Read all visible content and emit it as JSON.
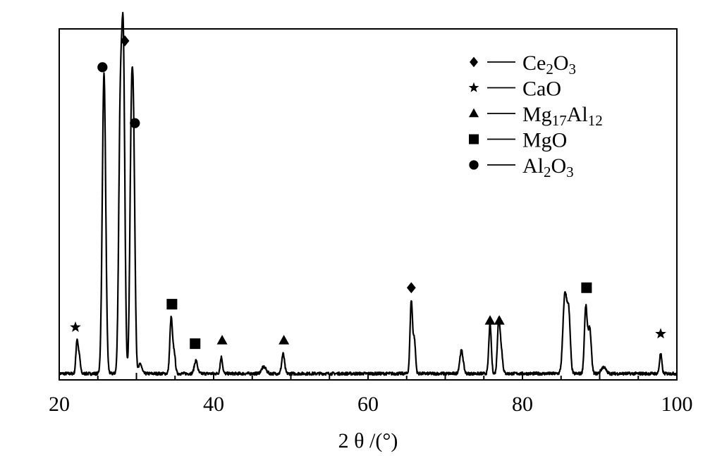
{
  "chart_data": {
    "type": "line",
    "title": "",
    "xlabel": "2 θ /(°)",
    "ylabel": "",
    "xlim": [
      20,
      100
    ],
    "ylim": [
      0,
      100
    ],
    "xticks": [
      "20",
      "40",
      "60",
      "80",
      "100"
    ],
    "grid": false,
    "legend_position": "top-right",
    "legend": [
      {
        "marker": "diamond",
        "base": "Ce",
        "sub1": "2",
        "mid": "O",
        "sub2": "3"
      },
      {
        "marker": "star",
        "base": "CaO",
        "sub1": "",
        "mid": "",
        "sub2": ""
      },
      {
        "marker": "triangle",
        "base": "Mg",
        "sub1": "17",
        "mid": "Al",
        "sub2": "12"
      },
      {
        "marker": "square",
        "base": "MgO",
        "sub1": "",
        "mid": "",
        "sub2": ""
      },
      {
        "marker": "circle",
        "base": "Al",
        "sub1": "2",
        "mid": "O",
        "sub2": "3"
      }
    ],
    "peaks": [
      {
        "x": 22.3,
        "y": 10,
        "w": 0.14
      },
      {
        "x": 22.6,
        "y": 5,
        "w": 0.14
      },
      {
        "x": 25.8,
        "y": 91,
        "w": 0.22
      },
      {
        "x": 28.3,
        "y": 96,
        "w": 0.2
      },
      {
        "x": 27.9,
        "y": 75,
        "w": 0.2
      },
      {
        "x": 29.6,
        "y": 72,
        "w": 0.2
      },
      {
        "x": 29.3,
        "y": 55,
        "w": 0.18
      },
      {
        "x": 30.5,
        "y": 3,
        "w": 0.2
      },
      {
        "x": 34.5,
        "y": 17,
        "w": 0.17
      },
      {
        "x": 34.9,
        "y": 6,
        "w": 0.15
      },
      {
        "x": 37.7,
        "y": 4,
        "w": 0.2
      },
      {
        "x": 41.0,
        "y": 5,
        "w": 0.15
      },
      {
        "x": 46.5,
        "y": 2,
        "w": 0.3
      },
      {
        "x": 49.0,
        "y": 6,
        "w": 0.18
      },
      {
        "x": 65.6,
        "y": 22,
        "w": 0.16
      },
      {
        "x": 66.0,
        "y": 10,
        "w": 0.15
      },
      {
        "x": 72.1,
        "y": 7,
        "w": 0.22
      },
      {
        "x": 75.8,
        "y": 15,
        "w": 0.16
      },
      {
        "x": 76.9,
        "y": 14,
        "w": 0.16
      },
      {
        "x": 77.2,
        "y": 8,
        "w": 0.2
      },
      {
        "x": 85.5,
        "y": 24,
        "w": 0.25
      },
      {
        "x": 86.0,
        "y": 17,
        "w": 0.2
      },
      {
        "x": 88.2,
        "y": 20,
        "w": 0.18
      },
      {
        "x": 88.7,
        "y": 14,
        "w": 0.2
      },
      {
        "x": 90.5,
        "y": 2,
        "w": 0.3
      },
      {
        "x": 97.9,
        "y": 6,
        "w": 0.15
      }
    ],
    "markers": [
      {
        "type": "star",
        "x": 22.1,
        "y": 13
      },
      {
        "type": "circle",
        "x": 25.6,
        "y": 92
      },
      {
        "type": "diamond",
        "x": 28.5,
        "y": 100
      },
      {
        "type": "circle",
        "x": 29.8,
        "y": 75
      },
      {
        "type": "square",
        "x": 34.6,
        "y": 20
      },
      {
        "type": "square",
        "x": 37.6,
        "y": 8
      },
      {
        "type": "triangle",
        "x": 41.1,
        "y": 9
      },
      {
        "type": "triangle",
        "x": 49.1,
        "y": 9
      },
      {
        "type": "diamond",
        "x": 65.6,
        "y": 25
      },
      {
        "type": "triangle",
        "x": 75.8,
        "y": 15
      },
      {
        "type": "triangle",
        "x": 77.0,
        "y": 15
      },
      {
        "type": "square",
        "x": 88.3,
        "y": 25
      },
      {
        "type": "star",
        "x": 97.9,
        "y": 11
      }
    ]
  }
}
